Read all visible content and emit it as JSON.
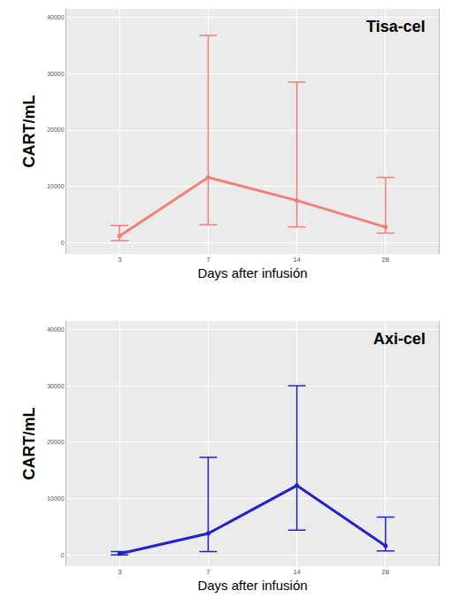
{
  "chart_data": [
    {
      "type": "line",
      "title": "Tisa-cel",
      "x_label": "Days after infusión",
      "y_label": "CART/mL",
      "categories": [
        "3",
        "7",
        "14",
        "28"
      ],
      "values": [
        1200,
        11600,
        7500,
        2800
      ],
      "error_plus": [
        1900,
        25200,
        21000,
        8800
      ],
      "error_minus": [
        800,
        8400,
        4700,
        1100
      ],
      "color": "#f08078",
      "ylim": [
        -2000,
        41500
      ],
      "yticks": [
        0,
        10000,
        20000,
        30000,
        40000
      ],
      "grid": true
    },
    {
      "type": "line",
      "title": "Axi-cel",
      "x_label": "Days after infusión",
      "y_label": "CART/mL",
      "categories": [
        "3",
        "7",
        "14",
        "28"
      ],
      "values": [
        200,
        3800,
        12300,
        1600
      ],
      "error_plus": [
        400,
        13500,
        17700,
        5100
      ],
      "error_minus": [
        200,
        3200,
        7900,
        900
      ],
      "color": "#2222cc",
      "ylim": [
        -2000,
        41500
      ],
      "yticks": [
        0,
        10000,
        20000,
        30000,
        40000
      ],
      "grid": true
    }
  ]
}
